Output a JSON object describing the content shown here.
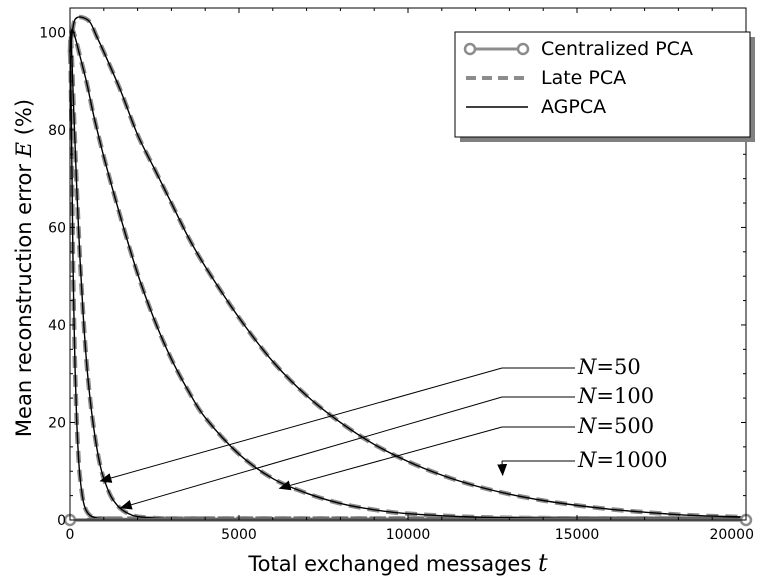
{
  "chart_data": {
    "type": "line",
    "title": "",
    "xlabel": "Total exchanged messages",
    "xlabel_var": "t",
    "ylabel": "Mean reconstruction error",
    "ylabel_var": "E",
    "ylabel_unit": "(%)",
    "xlim": [
      0,
      20000
    ],
    "ylim": [
      0,
      105
    ],
    "xticks": [
      0,
      5000,
      10000,
      15000,
      20000
    ],
    "yticks": [
      0,
      20,
      40,
      60,
      80,
      100
    ],
    "grid": false,
    "legend": {
      "placement": "top-right",
      "entries": [
        {
          "label": "Centralized PCA",
          "style": "gray-circle-line",
          "color": "#8c8c8c"
        },
        {
          "label": "Late PCA",
          "style": "gray-dashed",
          "color": "#8c8c8c"
        },
        {
          "label": "AGPCA",
          "style": "black-solid",
          "color": "#000000"
        }
      ]
    },
    "centralized_pca": {
      "x": [
        0,
        20000
      ],
      "y": [
        0,
        0
      ]
    },
    "curves": [
      {
        "N": "1000",
        "x": [
          0,
          100,
          200,
          400,
          600,
          800,
          1000,
          1500,
          2000,
          2500,
          3000,
          3500,
          4000,
          5000,
          6000,
          7000,
          8000,
          9000,
          10000,
          11000,
          12000,
          13000,
          14000,
          15000,
          16000,
          17000,
          18000,
          19000,
          20000
        ],
        "y": [
          96,
          101.5,
          103,
          103,
          102,
          99,
          96,
          88,
          79,
          72,
          65,
          58,
          52,
          41.5,
          32.5,
          25.5,
          20,
          15.5,
          12,
          9.2,
          7,
          5.3,
          4,
          3,
          2.2,
          1.6,
          1.1,
          0.8,
          0.6
        ]
      },
      {
        "N": "500",
        "x": [
          0,
          50,
          150,
          300,
          500,
          700,
          1000,
          1500,
          2000,
          2500,
          3000,
          3500,
          4000,
          5000,
          6000,
          7000,
          8000,
          9000,
          10000,
          12000,
          14000,
          16000,
          20000
        ],
        "y": [
          96,
          100.5,
          99,
          95,
          89.5,
          83,
          74.5,
          62,
          50.5,
          41,
          33,
          26.5,
          21,
          13.5,
          8.5,
          5.5,
          3.4,
          2.1,
          1.3,
          0.6,
          0.4,
          0.3,
          0.3
        ]
      },
      {
        "N": "100",
        "x": [
          0,
          20,
          60,
          100,
          150,
          200,
          300,
          400,
          500,
          600,
          700,
          800,
          900,
          1000,
          1200,
          1400,
          1600,
          1800,
          2000,
          2500,
          3000,
          4000,
          5000,
          20000
        ],
        "y": [
          96,
          99.5,
          94,
          86,
          77,
          68,
          53,
          41,
          31.5,
          24.5,
          19,
          14.5,
          11,
          8.5,
          5,
          3,
          1.8,
          1.1,
          0.7,
          0.4,
          0.3,
          0.3,
          0.3,
          0.3
        ]
      },
      {
        "N": "50",
        "x": [
          0,
          20,
          40,
          60,
          80,
          100,
          150,
          200,
          250,
          300,
          400,
          500,
          600,
          700,
          800,
          1000,
          1200,
          1500,
          2000,
          20000
        ],
        "y": [
          96,
          92,
          82,
          70,
          58,
          48,
          31,
          20,
          13,
          8.5,
          3.6,
          1.7,
          0.9,
          0.6,
          0.4,
          0.3,
          0.3,
          0.3,
          0.3,
          0.3
        ]
      }
    ],
    "annotations": [
      {
        "label_var": "N",
        "label_eq": "=",
        "label_value": "50",
        "target": [
          900,
          8
        ]
      },
      {
        "label_var": "N",
        "label_eq": "=",
        "label_value": "100",
        "target": [
          1500,
          2.5
        ]
      },
      {
        "label_var": "N",
        "label_eq": "=",
        "label_value": "500",
        "target": [
          6200,
          6.5
        ]
      },
      {
        "label_var": "N",
        "label_eq": "=",
        "label_value": "1000",
        "target": [
          12800,
          9.2
        ]
      }
    ]
  }
}
